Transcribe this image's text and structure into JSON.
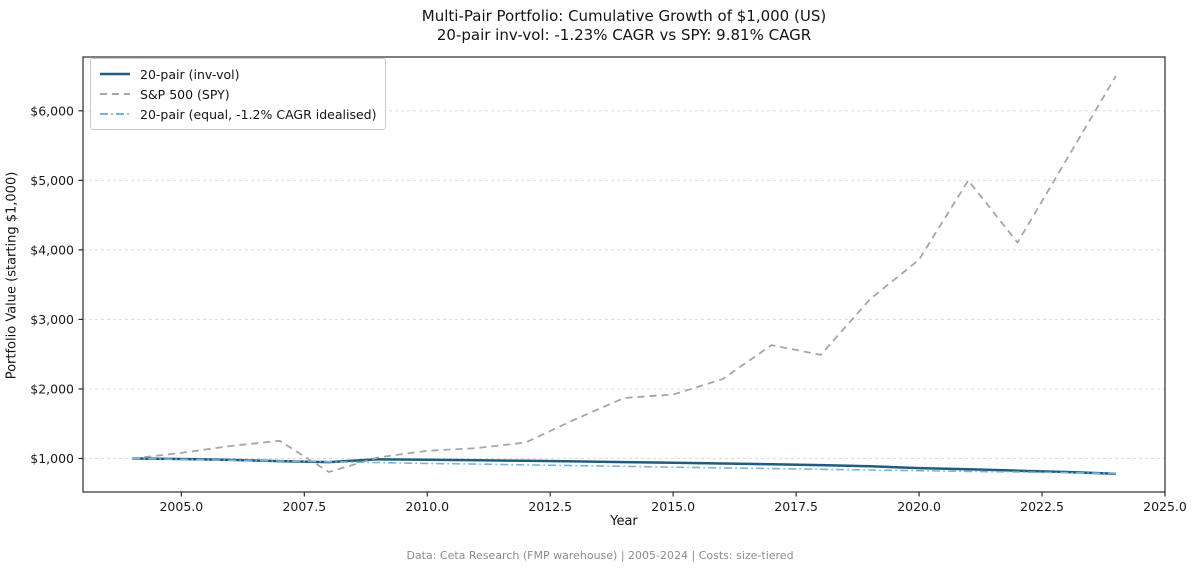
{
  "title": "Multi-Pair Portfolio: Cumulative Growth of $1,000 (US)",
  "subtitle": "20-pair inv-vol: -1.23% CAGR vs SPY: 9.81% CAGR",
  "footer": "Data: Ceta Research (FMP warehouse) | 2005-2024 | Costs: size-tiered",
  "chart_data": {
    "type": "line",
    "xlabel": "Year",
    "ylabel": "Portfolio Value (starting $1,000)",
    "x": [
      2004,
      2005,
      2006,
      2007,
      2008,
      2009,
      2010,
      2011,
      2012,
      2013,
      2014,
      2015,
      2016,
      2017,
      2018,
      2019,
      2020,
      2021,
      2022,
      2023,
      2024
    ],
    "series": [
      {
        "name": "20-pair (inv-vol)",
        "color": "#1f5c7f",
        "style": "solid",
        "width": 2.5,
        "values": [
          1000,
          993,
          980,
          962,
          948,
          988,
          982,
          974,
          966,
          958,
          948,
          938,
          928,
          918,
          905,
          888,
          862,
          845,
          825,
          805,
          781
        ]
      },
      {
        "name": "S&P 500 (SPY)",
        "color": "#a6a6a6",
        "style": "dashed",
        "width": 1.8,
        "values": [
          1000,
          1080,
          1180,
          1255,
          805,
          1015,
          1110,
          1150,
          1230,
          1560,
          1870,
          1920,
          2140,
          2630,
          2490,
          3290,
          3860,
          5000,
          4105,
          5300,
          6500
        ]
      },
      {
        "name": "20-pair (equal, -1.2% CAGR idealised)",
        "color": "#79b5d9",
        "style": "dashdot",
        "width": 1.6,
        "values": [
          1000,
          988,
          976,
          964,
          953,
          941,
          930,
          919,
          908,
          897,
          886,
          875,
          865,
          855,
          844,
          834,
          824,
          814,
          805,
          795,
          785
        ]
      }
    ],
    "x_ticks": [
      {
        "v": 2005.0,
        "label": "2005.0"
      },
      {
        "v": 2007.5,
        "label": "2007.5"
      },
      {
        "v": 2010.0,
        "label": "2010.0"
      },
      {
        "v": 2012.5,
        "label": "2012.5"
      },
      {
        "v": 2015.0,
        "label": "2015.0"
      },
      {
        "v": 2017.5,
        "label": "2017.5"
      },
      {
        "v": 2020.0,
        "label": "2020.0"
      },
      {
        "v": 2022.5,
        "label": "2022.5"
      },
      {
        "v": 2025.0,
        "label": "2025.0"
      }
    ],
    "y_ticks": [
      {
        "v": 1000,
        "label": "$1,000"
      },
      {
        "v": 2000,
        "label": "$2,000"
      },
      {
        "v": 3000,
        "label": "$3,000"
      },
      {
        "v": 4000,
        "label": "$4,000"
      },
      {
        "v": 5000,
        "label": "$5,000"
      },
      {
        "v": 6000,
        "label": "$6,000"
      }
    ],
    "xlim": [
      2003,
      2025
    ],
    "ylim": [
      518,
      6774
    ],
    "grid": "horizontal-dashed",
    "legend_position": "upper-left",
    "grid_color": "#dcdcdc",
    "spine_color": "#2b2b2b",
    "tick_label_color": "#1a1a1a"
  }
}
